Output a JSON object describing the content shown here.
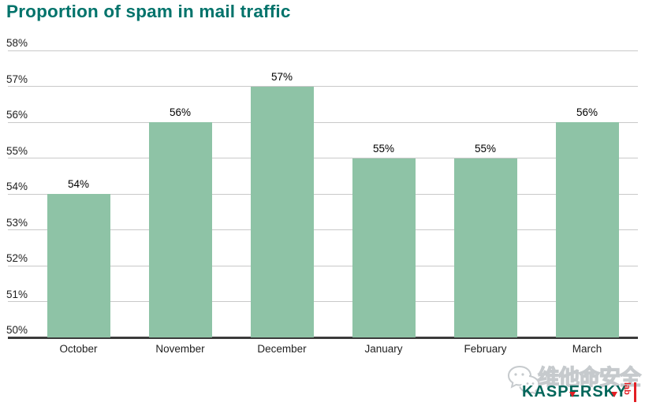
{
  "chart_data": {
    "type": "bar",
    "title": "Proportion of spam in mail traffic",
    "categories": [
      "October",
      "November",
      "December",
      "January",
      "February",
      "March"
    ],
    "values": [
      54,
      56,
      57,
      55,
      55,
      56
    ],
    "value_labels": [
      "54%",
      "56%",
      "57%",
      "55%",
      "55%",
      "56%"
    ],
    "yticks": [
      {
        "value": 58,
        "label": "58%"
      },
      {
        "value": 57,
        "label": "57%"
      },
      {
        "value": 56,
        "label": "56%"
      },
      {
        "value": 55,
        "label": "55%"
      },
      {
        "value": 54,
        "label": "54%"
      },
      {
        "value": 53,
        "label": "53%"
      },
      {
        "value": 52,
        "label": "52%"
      },
      {
        "value": 51,
        "label": "51%"
      },
      {
        "value": 50,
        "label": "50%"
      }
    ],
    "ylim": [
      50,
      58
    ],
    "xlabel": "",
    "ylabel": "",
    "grid": true,
    "legend": "none"
  },
  "colors": {
    "title": "#00736B",
    "bar": "#8EC3A6",
    "gridline": "#C9C9C9",
    "axis": "#3B3B3B",
    "tick_label": "#1F1F1F",
    "watermark_gray": "#C6CACD",
    "kaspersky_green": "#00665A",
    "kaspersky_red": "#E31E24"
  },
  "watermark": {
    "overlay_text": "维他命安全",
    "brand_text": "KASPERSKY",
    "brand_suffix": "lab"
  }
}
